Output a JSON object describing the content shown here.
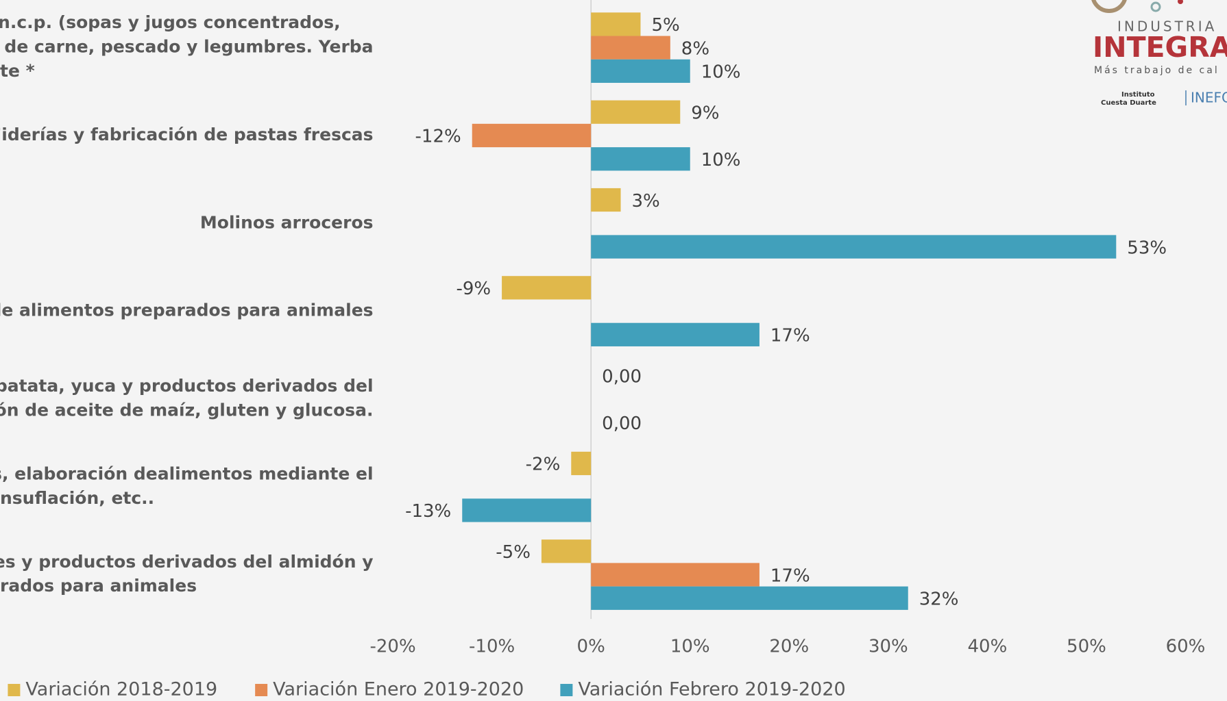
{
  "chart_data": {
    "type": "barh",
    "categories": [
      [
        "icios n.c.p. (sopas y jugos concentrados,",
        "actos de carne, pescado y legumbres. Yerba",
        "te *"
      ],
      [
        "Fiderías y fabricación de pastas frescas"
      ],
      [
        "Molinos arroceros"
      ],
      [
        "n  de alimentos preparados para animales"
      ],
      [
        "z, patata, yuca y productos derivados del",
        "oración de aceite de maíz, gluten y glucosa."
      ],
      [
        "ales, elaboración dealimentos mediante el",
        "nsuflación, etc.."
      ],
      [
        "idones y productos derivados del almidón y",
        "rados para animales"
      ]
    ],
    "series": [
      {
        "name": "Variación 2018-2019",
        "color": "#e0b84b",
        "values": [
          5,
          9,
          3,
          -9,
          0,
          -2,
          -5
        ],
        "value_labels": [
          "5%",
          "9%",
          "3%",
          "-9%",
          "0,00",
          "-2%",
          "-5%"
        ]
      },
      {
        "name": "Variación Enero 2019-2020",
        "color": "#e58a52",
        "values": [
          8,
          -12,
          null,
          null,
          null,
          null,
          17
        ],
        "value_labels": [
          "8%",
          "-12%",
          null,
          null,
          null,
          null,
          "17%"
        ]
      },
      {
        "name": "Variación Febrero 2019-2020",
        "color": "#41a0bb",
        "values": [
          10,
          10,
          53,
          17,
          0,
          -13,
          32
        ],
        "value_labels": [
          "10%",
          "10%",
          "53%",
          "17%",
          "0,00",
          "-13%",
          "32%"
        ]
      }
    ],
    "xlim": [
      -20,
      60
    ],
    "xticks": [
      {
        "value": -20,
        "label": "-20%"
      },
      {
        "value": -10,
        "label": "-10%"
      },
      {
        "value": 0,
        "label": "0%"
      },
      {
        "value": 10,
        "label": "10%"
      },
      {
        "value": 20,
        "label": "20%"
      },
      {
        "value": 30,
        "label": "30%"
      },
      {
        "value": 40,
        "label": "40%"
      },
      {
        "value": 50,
        "label": "50%"
      },
      {
        "value": 60,
        "label": "60%"
      }
    ],
    "legend": "bottom"
  },
  "logo": {
    "line1": "INDUSTRIA",
    "brand": "INTEGRAD",
    "tagline": "Más trabajo de cal",
    "inst1": "Instituto",
    "inst2": "Cuesta Duarte",
    "inefo": "INEFO"
  }
}
